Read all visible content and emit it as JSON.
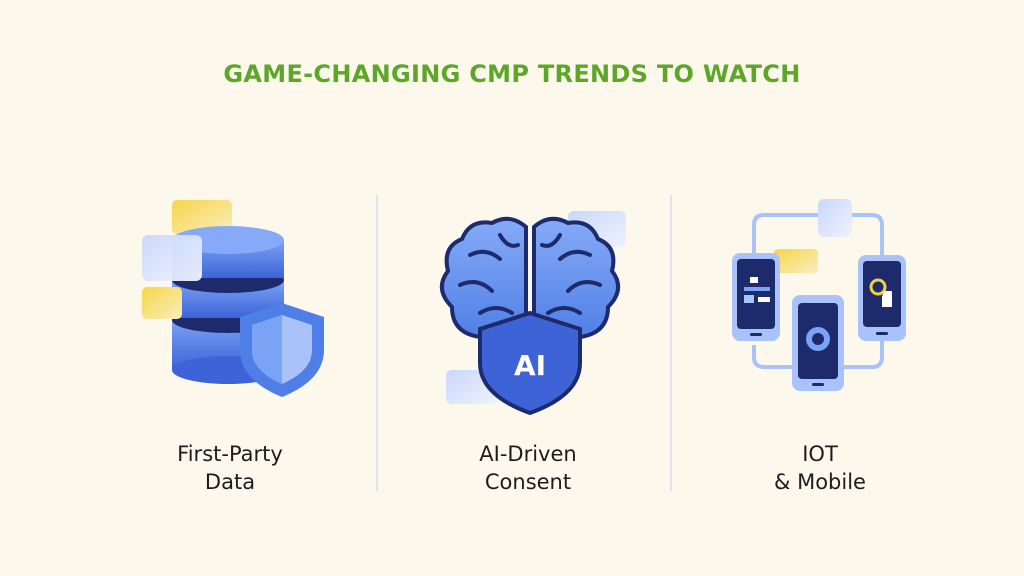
{
  "title": "GAME-CHANGING CMP TRENDS TO WATCH",
  "columns": [
    {
      "line1": "First-Party",
      "line2": "Data",
      "icon": "database-shield-icon"
    },
    {
      "line1": "AI-Driven",
      "line2": "Consent",
      "icon": "brain-shield-icon",
      "badge": "AI"
    },
    {
      "line1": "IOT",
      "line2": "& Mobile",
      "icon": "connected-devices-icon"
    }
  ],
  "colors": {
    "title": "#5ca628",
    "primary_blue": "#4f7fe6",
    "dark_navy": "#1d2a6b",
    "accent_yellow": "#f5cf3c",
    "background": "#fdf8ec"
  }
}
